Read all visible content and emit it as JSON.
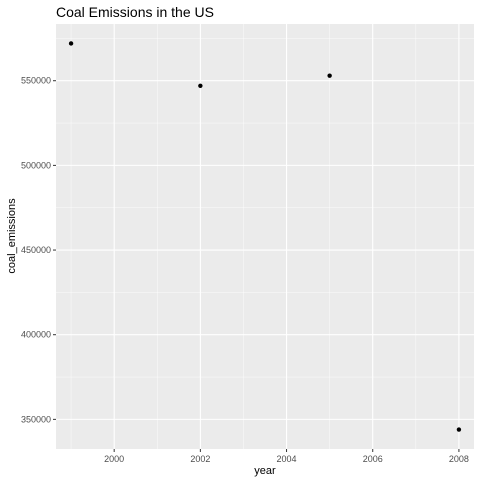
{
  "chart_data": {
    "type": "scatter",
    "title": "Coal Emissions in the US",
    "xlabel": "year",
    "ylabel": "coal_emissions",
    "x": [
      1999,
      2002,
      2005,
      2008
    ],
    "y": [
      572000,
      547000,
      553000,
      344000
    ],
    "xlim": [
      1998.65,
      2008.35
    ],
    "ylim": [
      332500,
      583500
    ],
    "x_ticks": [
      2000,
      2002,
      2004,
      2006,
      2008
    ],
    "x_tick_labels": [
      "2000",
      "2002",
      "2004",
      "2006",
      "2008"
    ],
    "y_ticks": [
      350000,
      400000,
      450000,
      500000,
      550000
    ],
    "y_tick_labels": [
      "350000",
      "400000",
      "450000",
      "500000",
      "550000"
    ],
    "grid": true,
    "colors": {
      "panel_background": "#ebebeb",
      "grid_major": "#ffffff",
      "point": "#000000",
      "tick": "#333333"
    }
  }
}
